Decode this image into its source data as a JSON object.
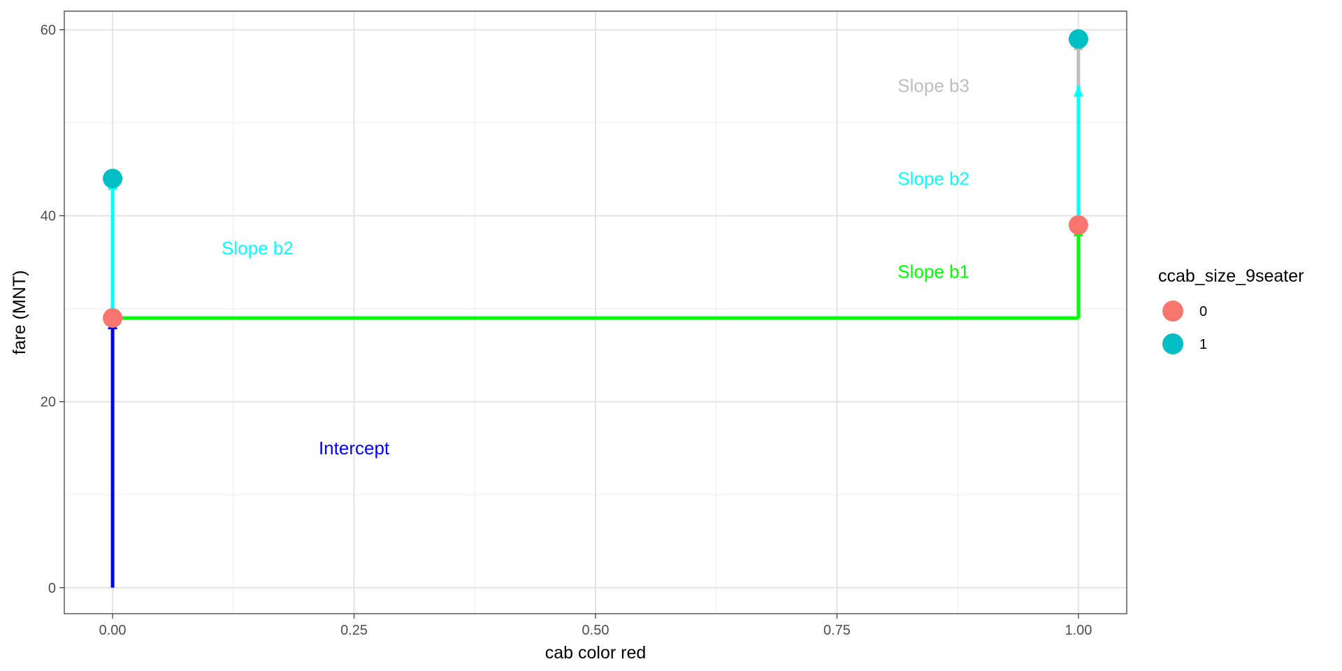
{
  "chart_data": {
    "type": "scatter",
    "xlabel": "cab color red",
    "ylabel": "fare (MNT)",
    "xlim": [
      -0.05,
      1.05
    ],
    "ylim": [
      -2.8,
      62
    ],
    "x_major_ticks": [
      0.0,
      0.25,
      0.5,
      0.75,
      1.0
    ],
    "x_tick_labels": [
      "0.00",
      "0.25",
      "0.50",
      "0.75",
      "1.00"
    ],
    "x_minor_ticks": [
      0.125,
      0.375,
      0.625,
      0.875
    ],
    "y_major_ticks": [
      0,
      20,
      40,
      60
    ],
    "y_tick_labels": [
      "0",
      "20",
      "40",
      "60"
    ],
    "y_minor_ticks": [
      10,
      30,
      50
    ],
    "grid": true,
    "legend": {
      "title": "ccab_size_9seater",
      "placement": "right",
      "entries": [
        {
          "label": "0",
          "color": "#F8766D"
        },
        {
          "label": "1",
          "color": "#00BFC4"
        }
      ]
    },
    "series": [
      {
        "name": "0",
        "color": "#F8766D",
        "points": [
          {
            "x": 0,
            "y": 29
          },
          {
            "x": 1,
            "y": 39
          }
        ]
      },
      {
        "name": "1",
        "color": "#00BFC4",
        "points": [
          {
            "x": 0,
            "y": 44
          },
          {
            "x": 1,
            "y": 59
          }
        ]
      }
    ],
    "segments": [
      {
        "x1": 0,
        "y1": 0,
        "x2": 0,
        "y2": 29,
        "color": "#0000FF",
        "arrow": true
      },
      {
        "x1": 0,
        "y1": 29,
        "x2": 1,
        "y2": 29,
        "color": "#00FF00",
        "arrow": false
      },
      {
        "x1": 1,
        "y1": 29,
        "x2": 1,
        "y2": 39,
        "color": "#00FF00",
        "arrow": true
      },
      {
        "x1": 0,
        "y1": 29,
        "x2": 0,
        "y2": 44,
        "color": "#00FFFF",
        "arrow": true
      },
      {
        "x1": 1,
        "y1": 39,
        "x2": 1,
        "y2": 54,
        "color": "#00FFFF",
        "arrow": true
      },
      {
        "x1": 1,
        "y1": 54,
        "x2": 1,
        "y2": 59,
        "color": "#BEBEBE",
        "arrow": true
      }
    ],
    "annotations": [
      {
        "text": "Intercept",
        "x": 0.25,
        "y": 15,
        "color": "#0000FF"
      },
      {
        "text": "Slope b2",
        "x": 0.15,
        "y": 36.5,
        "color": "#00FFFF"
      },
      {
        "text": "Slope b1",
        "x": 0.85,
        "y": 34,
        "color": "#00FF00"
      },
      {
        "text": "Slope b2",
        "x": 0.85,
        "y": 44,
        "color": "#00FFFF"
      },
      {
        "text": "Slope b3",
        "x": 0.85,
        "y": 54,
        "color": "#BEBEBE"
      }
    ]
  }
}
